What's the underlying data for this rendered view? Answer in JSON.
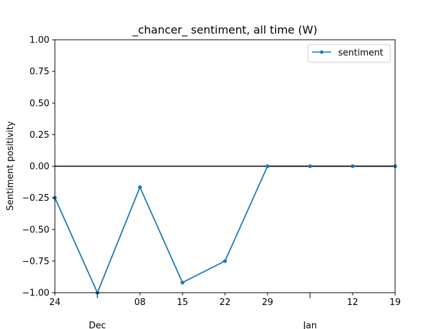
{
  "chart_data": {
    "type": "line",
    "title": "_chancer_ sentiment, all time (W)",
    "xlabel": "",
    "ylabel": "Sentiment positivity",
    "x": [
      "2017-11-24",
      "2017-12-01",
      "2017-12-08",
      "2017-12-15",
      "2017-12-22",
      "2017-12-29",
      "2018-01-05",
      "2018-01-12",
      "2018-01-19"
    ],
    "xlim": [
      "2017-11-24",
      "2018-01-19"
    ],
    "ylim": [
      -1.0,
      1.0
    ],
    "series": [
      {
        "name": "sentiment",
        "values": [
          -0.25,
          -1.0,
          -0.166,
          -0.92,
          -0.75,
          0.0,
          0.0,
          0.0,
          0.0
        ],
        "color": "#1f77b4"
      }
    ],
    "x_ticks_minor": [
      {
        "date": "2017-11-24",
        "label": "24"
      },
      {
        "date": "2017-12-01",
        "label": ""
      },
      {
        "date": "2017-12-08",
        "label": "08"
      },
      {
        "date": "2017-12-15",
        "label": "15"
      },
      {
        "date": "2017-12-22",
        "label": "22"
      },
      {
        "date": "2017-12-29",
        "label": "29"
      },
      {
        "date": "2018-01-05",
        "label": ""
      },
      {
        "date": "2018-01-12",
        "label": "12"
      },
      {
        "date": "2018-01-19",
        "label": "19"
      }
    ],
    "x_ticks_major": [
      {
        "date": "2017-12-01",
        "label": "Dec"
      },
      {
        "date": "2018-01-05",
        "label": "Jan"
      }
    ],
    "y_ticks": [
      {
        "value": 1.0,
        "label": "1.00"
      },
      {
        "value": 0.75,
        "label": "0.75"
      },
      {
        "value": 0.5,
        "label": "0.50"
      },
      {
        "value": 0.25,
        "label": "0.25"
      },
      {
        "value": 0.0,
        "label": "0.00"
      },
      {
        "value": -0.25,
        "label": "−0.25"
      },
      {
        "value": -0.5,
        "label": "−0.50"
      },
      {
        "value": -0.75,
        "label": "−0.75"
      },
      {
        "value": -1.0,
        "label": "−1.00"
      }
    ],
    "reference_line": {
      "y": 0.0,
      "color": "#000000"
    },
    "grid": false,
    "legend": {
      "position": "top-right",
      "entries": [
        "sentiment"
      ]
    }
  }
}
